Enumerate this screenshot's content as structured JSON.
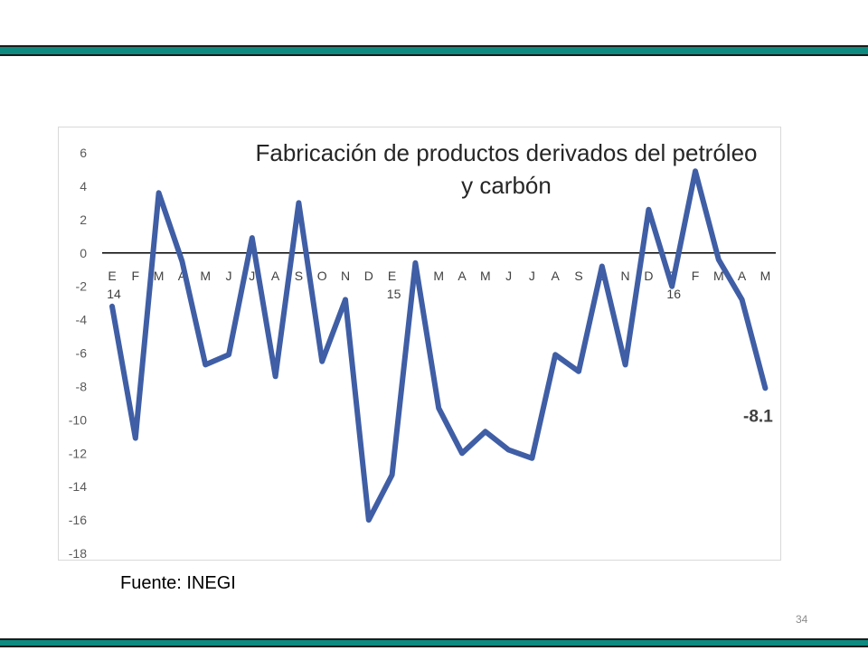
{
  "slide": {
    "source": "Fuente: INEGI",
    "page_number": "34",
    "band_color": "#0e8a80"
  },
  "chart_data": {
    "type": "line",
    "title": [
      "Fabricación de productos derivados del petróleo",
      "y carbón"
    ],
    "xlabel": "",
    "ylabel": "",
    "ylim": [
      -18,
      6
    ],
    "yticks": [
      "6",
      "4",
      "2",
      "0",
      "-2",
      "-4",
      "-6",
      "-8",
      "-10",
      "-12",
      "-14",
      "-16",
      "-18"
    ],
    "categories": [
      "E",
      "F",
      "M",
      "A",
      "M",
      "J",
      "J",
      "A",
      "S",
      "O",
      "N",
      "D",
      "E",
      "F",
      "M",
      "A",
      "M",
      "J",
      "J",
      "A",
      "S",
      "O",
      "N",
      "D",
      "E",
      "F",
      "M",
      "A",
      "M"
    ],
    "year_labels": [
      {
        "index": 0,
        "label": "14"
      },
      {
        "index": 12,
        "label": "15"
      },
      {
        "index": 24,
        "label": "16"
      }
    ],
    "series": [
      {
        "values": [
          -3.2,
          -11.1,
          3.6,
          -0.5,
          -6.7,
          -6.1,
          0.9,
          -7.4,
          3.0,
          -6.5,
          -2.8,
          -16.0,
          -13.3,
          -0.6,
          -9.3,
          -12.0,
          -10.7,
          -11.8,
          -12.3,
          -6.1,
          -7.1,
          -0.8,
          -6.7,
          2.6,
          -2.0,
          4.9,
          -0.4,
          -2.8,
          -8.1
        ],
        "color": "#3f5ea5"
      }
    ],
    "data_labels": [
      {
        "index": 28,
        "label": "-8.1"
      }
    ],
    "grid": false,
    "zero_line": true
  }
}
